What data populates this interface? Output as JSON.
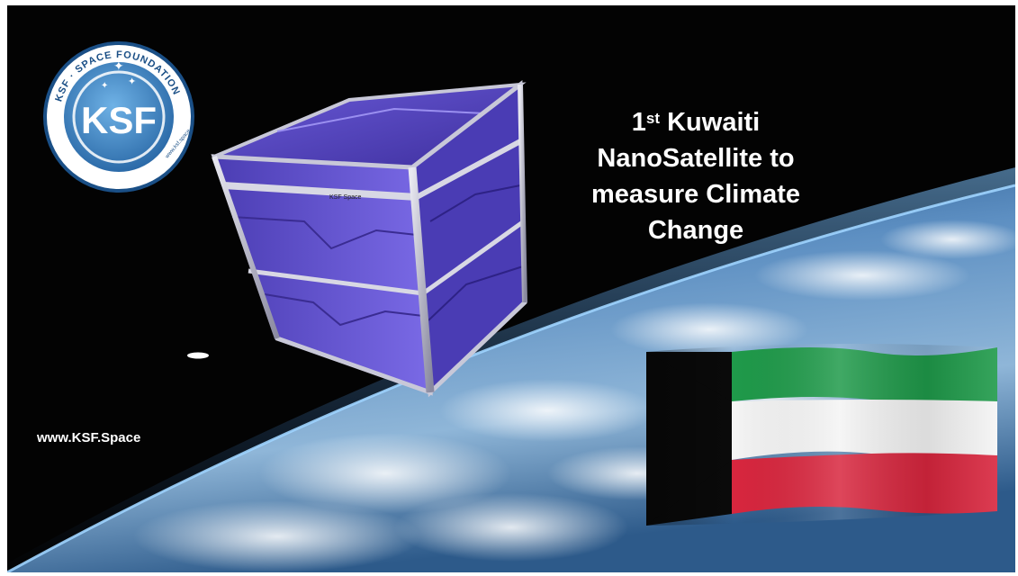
{
  "logo": {
    "ring_text": "KSF · SPACE FOUNDATION",
    "monogram": "KSF",
    "small_url": "www.ksf.space"
  },
  "headline": {
    "ordinal_number": "1",
    "ordinal_suffix": "st",
    "line1_rest": " Kuwaiti",
    "line2": "NanoSatellite to",
    "line3": "measure Climate",
    "line4": "Change"
  },
  "website": "www.KSF.Space",
  "satellite_label": "KSF Space",
  "colors": {
    "background": "#030303",
    "panel_purple": "#5a4bc4",
    "flag_green": "#1f9a4a",
    "flag_white": "#f4f4f4",
    "flag_red": "#d8263e",
    "flag_black": "#0a0a0a",
    "logo_blue": "#4a90c8"
  }
}
